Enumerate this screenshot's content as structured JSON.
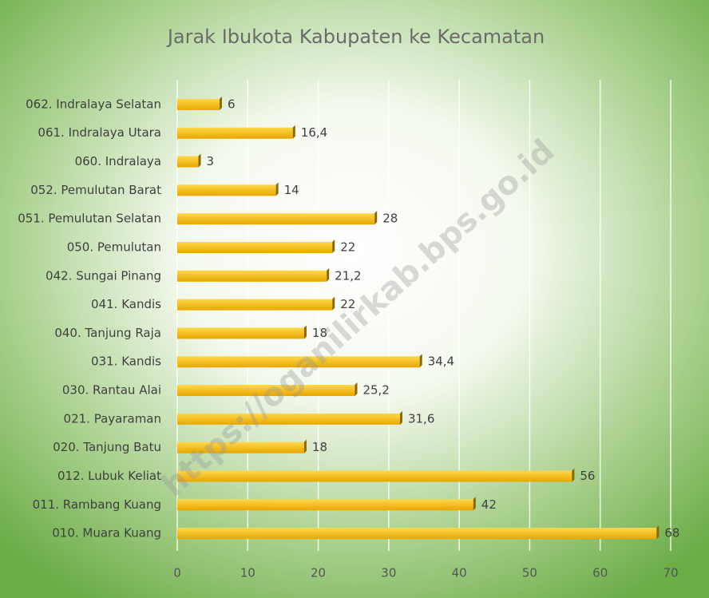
{
  "chart_data": {
    "type": "barh",
    "title": "Jarak Ibukota Kabupaten ke Kecamatan",
    "watermark": "https://oganilirkab.bps.go.id",
    "categories": [
      "062. Indralaya Selatan",
      "061. Indralaya Utara",
      "060. Indralaya",
      "052. Pemulutan Barat",
      "051. Pemulutan Selatan",
      "050. Pemulutan",
      "042. Sungai Pinang",
      "041. Kandis",
      "040. Tanjung Raja",
      "031. Kandis",
      "030. Rantau Alai",
      "021. Payaraman",
      "020. Tanjung Batu",
      "012. Lubuk Keliat",
      "011. Rambang Kuang",
      "010. Muara Kuang"
    ],
    "values": [
      6,
      16.4,
      3,
      14,
      28,
      22,
      21.2,
      22,
      18,
      34.4,
      25.2,
      31.6,
      18,
      56,
      42,
      68
    ],
    "value_labels": [
      "6",
      "16,4",
      "3",
      "14",
      "28",
      "22",
      "21,2",
      "22",
      "18",
      "34,4",
      "25,2",
      "31,6",
      "18",
      "56",
      "42",
      "68"
    ],
    "color": "#f5b800",
    "xlim": [
      0,
      70
    ],
    "xticks": [
      0,
      10,
      20,
      30,
      40,
      50,
      60,
      70
    ],
    "grid": true
  }
}
